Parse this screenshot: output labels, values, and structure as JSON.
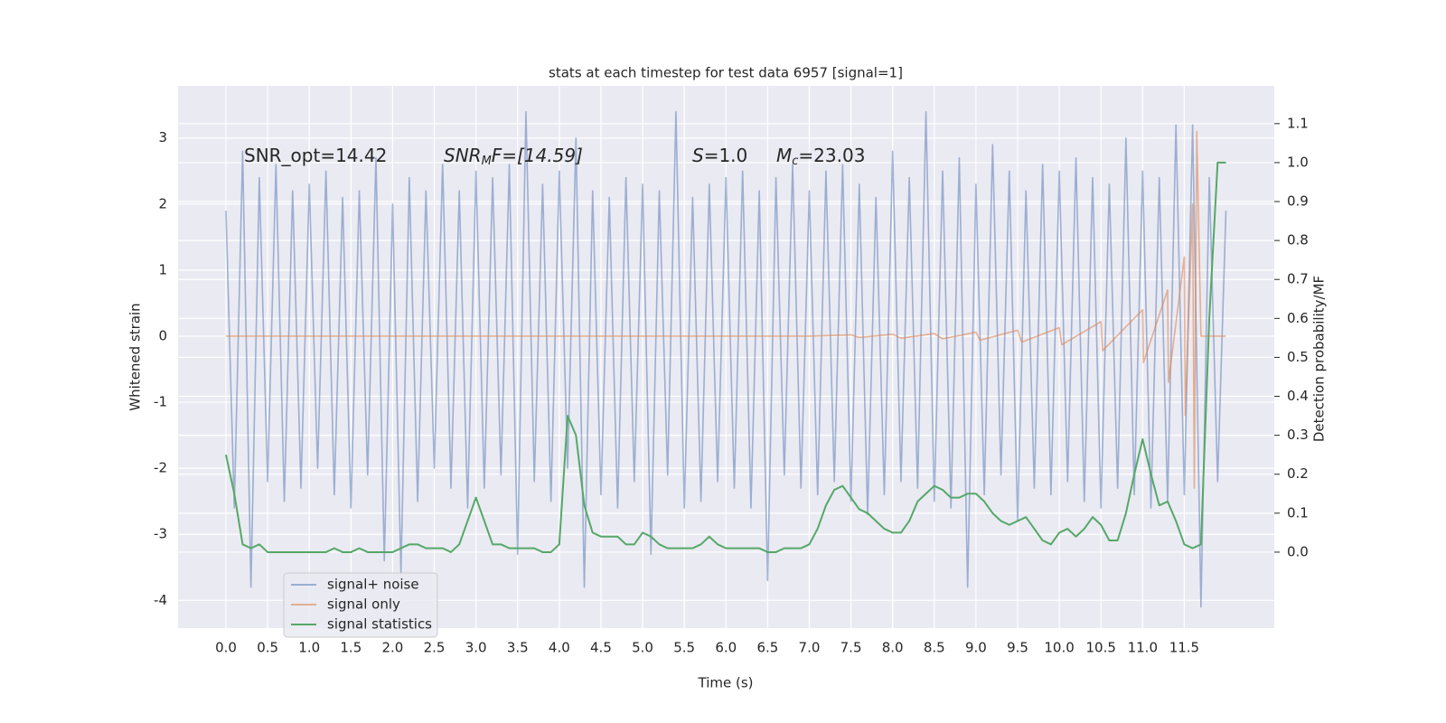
{
  "chart_data": {
    "type": "line",
    "title": "stats at each timestep for test data 6957 [signal=1]",
    "xlabel": "Time (s)",
    "ylabel": "Whitened strain",
    "y2label": "Detection probability/MF",
    "annotations": [
      {
        "parts": [
          "SNR_opt=14.42"
        ]
      },
      {
        "parts": [
          "SNR",
          "M",
          "F=[14.59]"
        ]
      },
      {
        "parts": [
          "S",
          "=1.0"
        ]
      },
      {
        "parts": [
          "M",
          "c",
          "=23.03"
        ]
      }
    ],
    "x": [
      0.0,
      0.1,
      0.2,
      0.3,
      0.4,
      0.5,
      0.6,
      0.7,
      0.8,
      0.9,
      1.0,
      1.1,
      1.2,
      1.3,
      1.4,
      1.5,
      1.6,
      1.7,
      1.8,
      1.9,
      2.0,
      2.1,
      2.2,
      2.3,
      2.4,
      2.5,
      2.6,
      2.7,
      2.8,
      2.9,
      3.0,
      3.1,
      3.2,
      3.3,
      3.4,
      3.5,
      3.6,
      3.7,
      3.8,
      3.9,
      4.0,
      4.1,
      4.2,
      4.3,
      4.4,
      4.5,
      4.6,
      4.7,
      4.8,
      4.9,
      5.0,
      5.1,
      5.2,
      5.3,
      5.4,
      5.5,
      5.6,
      5.7,
      5.8,
      5.9,
      6.0,
      6.1,
      6.2,
      6.3,
      6.4,
      6.5,
      6.6,
      6.7,
      6.8,
      6.9,
      7.0,
      7.1,
      7.2,
      7.3,
      7.4,
      7.5,
      7.6,
      7.7,
      7.8,
      7.9,
      8.0,
      8.1,
      8.2,
      8.3,
      8.4,
      8.5,
      8.6,
      8.7,
      8.8,
      8.9,
      9.0,
      9.1,
      9.2,
      9.3,
      9.4,
      9.5,
      9.6,
      9.7,
      9.8,
      9.9,
      10.0,
      10.1,
      10.2,
      10.3,
      10.4,
      10.5,
      10.6,
      10.7,
      10.8,
      10.9,
      11.0,
      11.1,
      11.2,
      11.3,
      11.4,
      11.5,
      11.6,
      11.7,
      11.8,
      11.9,
      12.0
    ],
    "series": [
      {
        "name": "signal+ noise",
        "color": "#4c72b0",
        "opacity": 0.5,
        "values": [
          1.9,
          -2.6,
          2.8,
          -3.8,
          2.4,
          -2.2,
          2.6,
          -2.5,
          2.2,
          -2.3,
          2.3,
          -2.0,
          2.5,
          -2.4,
          2.1,
          -2.6,
          2.2,
          -2.1,
          2.7,
          -3.4,
          2.0,
          -3.6,
          2.4,
          -2.5,
          2.2,
          -2.0,
          2.6,
          -2.3,
          2.2,
          -2.6,
          2.5,
          -2.3,
          2.4,
          -2.1,
          2.6,
          -3.3,
          3.4,
          -2.2,
          2.3,
          -2.5,
          2.5,
          -2.0,
          3.0,
          -3.8,
          2.2,
          -2.4,
          2.1,
          -2.6,
          2.4,
          -2.2,
          2.3,
          -3.3,
          2.2,
          -2.1,
          3.4,
          -2.6,
          2.1,
          -2.5,
          2.3,
          -2.2,
          2.4,
          -2.3,
          2.5,
          -2.6,
          2.2,
          -3.7,
          2.4,
          -2.1,
          2.6,
          -2.3,
          2.2,
          -2.4,
          2.5,
          -2.2,
          2.6,
          -2.5,
          2.3,
          -2.7,
          2.1,
          -2.4,
          2.8,
          -2.2,
          2.4,
          -2.3,
          3.4,
          -2.5,
          2.5,
          -2.6,
          2.7,
          -3.8,
          2.3,
          -2.4,
          2.9,
          -2.1,
          2.5,
          -2.8,
          2.2,
          -2.3,
          2.6,
          -2.4,
          2.5,
          -2.2,
          2.7,
          -2.5,
          2.4,
          -2.6,
          2.3,
          -2.3,
          3.0,
          -2.4,
          2.5,
          -2.6,
          2.4,
          -2.5,
          3.2,
          -2.4,
          3.2,
          -4.1,
          2.4,
          -2.2,
          1.9
        ]
      },
      {
        "name": "signal only",
        "color": "#dd8452",
        "opacity": 0.6,
        "x": [
          0,
          7,
          7.5,
          7.6,
          8,
          8.1,
          8.5,
          8.6,
          9,
          9.05,
          9.5,
          9.55,
          10,
          10.03,
          10.5,
          10.52,
          11,
          11.01,
          11.3,
          11.31,
          11.5,
          11.51,
          11.6,
          11.62,
          11.65,
          11.7,
          12.0
        ],
        "values": [
          0,
          0,
          0.02,
          -0.02,
          0.03,
          -0.03,
          0.04,
          -0.04,
          0.06,
          -0.06,
          0.09,
          -0.09,
          0.13,
          -0.13,
          0.22,
          -0.22,
          0.4,
          -0.4,
          0.7,
          -0.7,
          1.2,
          -1.2,
          2.0,
          -2.3,
          3.1,
          0,
          0
        ]
      },
      {
        "name": "signal statistics",
        "color": "#55a868",
        "opacity": 1,
        "axis": "y2",
        "values": [
          0.25,
          0.15,
          0.02,
          0.01,
          0.02,
          0.0,
          0.0,
          0.0,
          0.0,
          0.0,
          0.0,
          0.0,
          0.0,
          0.01,
          0.0,
          0.0,
          0.01,
          0.0,
          0.0,
          0.0,
          0.0,
          0.01,
          0.02,
          0.02,
          0.01,
          0.01,
          0.01,
          0.0,
          0.02,
          0.08,
          0.14,
          0.08,
          0.02,
          0.02,
          0.01,
          0.01,
          0.01,
          0.01,
          0.0,
          0.0,
          0.02,
          0.35,
          0.3,
          0.12,
          0.05,
          0.04,
          0.04,
          0.04,
          0.02,
          0.02,
          0.05,
          0.04,
          0.02,
          0.01,
          0.01,
          0.01,
          0.01,
          0.02,
          0.04,
          0.02,
          0.01,
          0.01,
          0.01,
          0.01,
          0.01,
          0.0,
          0.0,
          0.01,
          0.01,
          0.01,
          0.02,
          0.06,
          0.12,
          0.16,
          0.17,
          0.14,
          0.11,
          0.1,
          0.08,
          0.06,
          0.05,
          0.05,
          0.08,
          0.13,
          0.15,
          0.17,
          0.16,
          0.14,
          0.14,
          0.15,
          0.15,
          0.13,
          0.1,
          0.08,
          0.07,
          0.08,
          0.09,
          0.06,
          0.03,
          0.02,
          0.05,
          0.06,
          0.04,
          0.06,
          0.09,
          0.07,
          0.03,
          0.03,
          0.1,
          0.2,
          0.29,
          0.2,
          0.12,
          0.13,
          0.08,
          0.02,
          0.01,
          0.02,
          0.6,
          1.0,
          1.0
        ]
      }
    ],
    "xlim": [
      -0.575,
      12.58
    ],
    "ylim": [
      -4.42,
      3.79
    ],
    "y2lim": [
      -0.195,
      1.197
    ],
    "xticks": [
      {
        "value": 0,
        "label": "0.0"
      },
      0.5,
      {
        "value": 1,
        "label": "1.0"
      },
      1.5,
      {
        "value": 2,
        "label": "2.0"
      },
      2.5,
      {
        "value": 3,
        "label": "3.0"
      },
      3.5,
      {
        "value": 4,
        "label": "4.0"
      },
      4.5,
      {
        "value": 5,
        "label": "5.0"
      },
      5.5,
      {
        "value": 6,
        "label": "6.0"
      },
      6.5,
      {
        "value": 7,
        "label": "7.0"
      },
      7.5,
      {
        "value": 8,
        "label": "8.0"
      },
      8.5,
      {
        "value": 9,
        "label": "9.0"
      },
      9.5,
      {
        "value": 10,
        "label": "10.0"
      },
      10.5,
      {
        "value": 11,
        "label": "11.0"
      },
      11.5
    ],
    "yticks": [
      -4,
      -3,
      -2,
      -1,
      0,
      1,
      2,
      3
    ],
    "y2ticks": [
      {
        "value": 0,
        "label": "0.0"
      },
      0.1,
      0.2,
      0.3,
      0.4,
      0.5,
      0.6,
      0.7,
      0.8,
      0.9,
      {
        "value": 1,
        "label": "1.0"
      },
      1.1
    ],
    "grid": true,
    "legend": "lower left"
  }
}
